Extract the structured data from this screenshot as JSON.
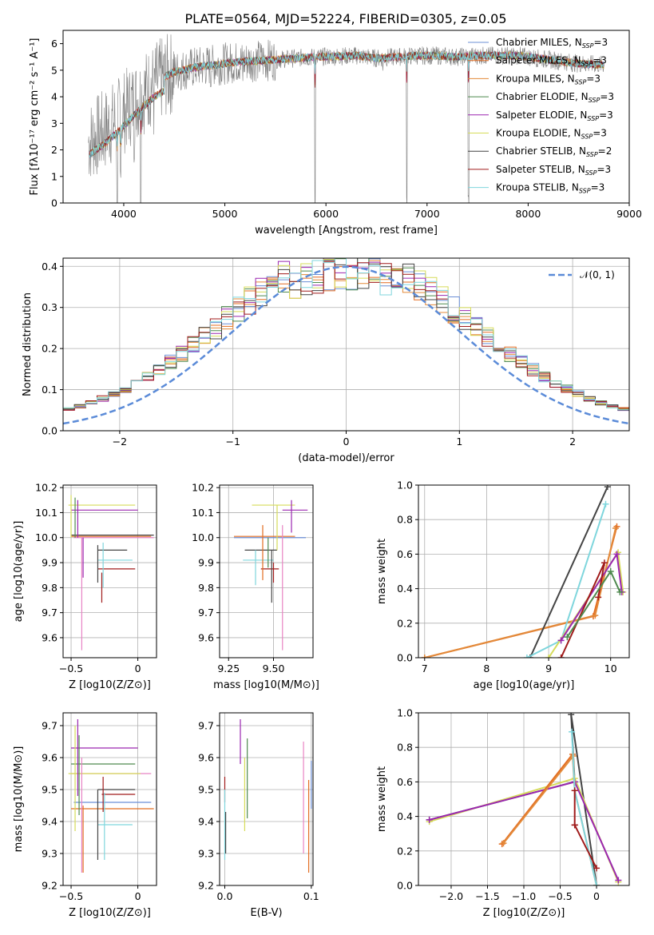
{
  "figure": {
    "title": "PLATE=0564, MJD=52224, FIBERID=0305, z=0.05"
  },
  "colors": {
    "Chabrier MILES": "#6b8fd6",
    "Salpeter MILES": "#e36d22",
    "Kroupa MILES": "#e38a3a",
    "Chabrier ELODIE": "#4f8a4f",
    "Salpeter ELODIE": "#9b27b0",
    "Kroupa ELODIE": "#d6dc5a",
    "Chabrier STELIB": "#444444",
    "Salpeter STELIB": "#a01b1b",
    "Kroupa STELIB": "#7fd6dd",
    "pink": "#e883c4",
    "gray_data": "#808080"
  },
  "chart_data": [
    {
      "id": "spectrum",
      "type": "line",
      "xlabel": "wavelength [Angstrom, rest frame]",
      "ylabel": "Flux [fλ10⁻¹⁷ erg cm⁻² s⁻¹ A⁻¹]",
      "xlim": [
        3400,
        9000
      ],
      "ylim": [
        0,
        6.5
      ],
      "xticks": [
        4000,
        5000,
        6000,
        7000,
        8000,
        9000
      ],
      "yticks": [
        0,
        1,
        2,
        3,
        4,
        5,
        6
      ],
      "legend_position": "upper-right",
      "legend": [
        "Chabrier MILES, N_SSP=3",
        "Salpeter MILES, N_SSP=3",
        "Kroupa MILES, N_SSP=3",
        "Chabrier ELODIE, N_SSP=3",
        "Salpeter ELODIE, N_SSP=3",
        "Kroupa ELODIE, N_SSP=3",
        "Chabrier STELIB, N_SSP=2",
        "Salpeter STELIB, N_SSP=3",
        "Kroupa STELIB, N_SSP=3"
      ],
      "continuum": {
        "x": [
          3650,
          3800,
          3950,
          4100,
          4300,
          4500,
          4700,
          4900,
          5100,
          5300,
          5500,
          5700,
          5900,
          6100,
          6300,
          6500,
          6700,
          6900,
          7100,
          7300,
          7500,
          7700,
          7900,
          8100,
          8300,
          8500,
          8750
        ],
        "y": [
          2.3,
          2.7,
          3.2,
          3.8,
          4.5,
          4.95,
          5.1,
          5.2,
          5.3,
          5.35,
          5.4,
          5.45,
          5.5,
          5.52,
          5.55,
          5.45,
          5.5,
          5.55,
          5.55,
          5.5,
          5.55,
          5.55,
          5.55,
          5.45,
          5.35,
          5.25,
          5.2
        ]
      },
      "absorption_dips": [
        {
          "x": 3934,
          "depth": 2.8
        },
        {
          "x": 3969,
          "depth": 2.5
        },
        {
          "x": 4102,
          "depth": 0.8
        },
        {
          "x": 4168,
          "depth": 5.0
        },
        {
          "x": 4300,
          "depth": 0.7
        },
        {
          "x": 4861,
          "depth": 0.4
        },
        {
          "x": 5175,
          "depth": 0.5
        },
        {
          "x": 5893,
          "depth": 5.4
        },
        {
          "x": 6563,
          "depth": 0.3
        },
        {
          "x": 6800,
          "depth": 5.4
        },
        {
          "x": 7410,
          "depth": 5.4
        }
      ]
    },
    {
      "id": "residuals",
      "type": "bar",
      "xlabel": "(data-model)/error",
      "ylabel": "Normed distribution",
      "xlim": [
        -2.5,
        2.5
      ],
      "ylim": [
        0,
        0.42
      ],
      "xticks": [
        -2,
        -1,
        0,
        1,
        2
      ],
      "yticks": [
        0.0,
        0.1,
        0.2,
        0.3,
        0.4
      ],
      "legend": [
        "𝒩(0, 1)"
      ],
      "legend_position": "upper-right",
      "bin_width": 0.1
    },
    {
      "id": "age-vs-Z",
      "type": "scatter",
      "xlabel": "Z [log10(Z/Z⊙)]",
      "ylabel": "age  [log10(age/yr)]",
      "xlim": [
        -0.56,
        0.14
      ],
      "ylim": [
        9.52,
        10.21
      ],
      "xticks": [
        -0.5,
        0.0
      ],
      "yticks": [
        9.6,
        9.7,
        9.8,
        9.9,
        10.0,
        10.1,
        10.2
      ],
      "segments": [
        {
          "c": "pink",
          "hline": [
            -0.48,
            0.12,
            10.0
          ]
        },
        {
          "c": "Salpeter MILES",
          "hline": [
            -0.5,
            0.1,
            10.005
          ]
        },
        {
          "c": "Chabrier STELIB",
          "hline": [
            -0.5,
            0.12,
            10.01
          ]
        },
        {
          "c": "Kroupa ELODIE",
          "hline": [
            -0.52,
            -0.02,
            10.13
          ]
        },
        {
          "c": "Salpeter ELODIE",
          "hline": [
            -0.5,
            0.0,
            10.11
          ]
        },
        {
          "c": "Chabrier STELIB",
          "hline": [
            -0.3,
            -0.08,
            9.95
          ]
        },
        {
          "c": "Kroupa STELIB",
          "hline": [
            -0.3,
            -0.04,
            9.91
          ]
        },
        {
          "c": "Salpeter STELIB",
          "hline": [
            -0.3,
            -0.02,
            9.875
          ]
        },
        {
          "c": "Kroupa ELODIE",
          "vline": [
            -0.5,
            10.0,
            10.17
          ]
        },
        {
          "c": "Chabrier ELODIE",
          "vline": [
            -0.47,
            10.0,
            10.16
          ]
        },
        {
          "c": "Salpeter ELODIE",
          "vline": [
            -0.45,
            10.0,
            10.15
          ]
        },
        {
          "c": "Salpeter ELODIE",
          "vline": [
            -0.41,
            9.84,
            10.0
          ]
        },
        {
          "c": "pink",
          "vline": [
            -0.42,
            9.55,
            10.0
          ]
        },
        {
          "c": "Chabrier STELIB",
          "vline": [
            -0.3,
            9.82,
            9.97
          ]
        },
        {
          "c": "Kroupa STELIB",
          "vline": [
            -0.26,
            9.8,
            9.98
          ]
        },
        {
          "c": "Salpeter STELIB",
          "vline": [
            -0.27,
            9.74,
            9.86
          ]
        }
      ]
    },
    {
      "id": "age-vs-mass",
      "type": "scatter",
      "xlabel": "mass [log10(M/M⊙)]",
      "ylabel": "",
      "xlim": [
        9.2,
        9.72
      ],
      "ylim": [
        9.52,
        10.21
      ],
      "xticks": [
        9.25,
        9.5
      ],
      "yticks": [
        9.6,
        9.7,
        9.8,
        9.9,
        10.0,
        10.1,
        10.2
      ],
      "segments": [
        {
          "c": "Chabrier MILES",
          "hline": [
            9.28,
            9.68,
            10.0
          ]
        },
        {
          "c": "Salpeter MILES",
          "hline": [
            9.28,
            9.62,
            10.005
          ]
        },
        {
          "c": "Kroupa ELODIE",
          "hline": [
            9.38,
            9.62,
            10.13
          ]
        },
        {
          "c": "Salpeter ELODIE",
          "hline": [
            9.55,
            9.69,
            10.11
          ]
        },
        {
          "c": "Chabrier STELIB",
          "hline": [
            9.34,
            9.52,
            9.95
          ]
        },
        {
          "c": "Kroupa STELIB",
          "hline": [
            9.33,
            9.5,
            9.91
          ]
        },
        {
          "c": "Salpeter STELIB",
          "hline": [
            9.43,
            9.53,
            9.875
          ]
        },
        {
          "c": "Salpeter MILES",
          "vline": [
            9.44,
            9.83,
            10.05
          ]
        },
        {
          "c": "Kroupa ELODIE",
          "vline": [
            9.52,
            9.95,
            10.13
          ]
        },
        {
          "c": "Salpeter ELODIE",
          "vline": [
            9.6,
            10.02,
            10.15
          ]
        },
        {
          "c": "pink",
          "vline": [
            9.55,
            9.55,
            10.05
          ]
        },
        {
          "c": "Chabrier STELIB",
          "vline": [
            9.49,
            9.74,
            9.95
          ]
        },
        {
          "c": "Kroupa STELIB",
          "vline": [
            9.4,
            9.81,
            9.95
          ]
        },
        {
          "c": "Salpeter STELIB",
          "vline": [
            9.5,
            9.82,
            9.9
          ]
        },
        {
          "c": "Chabrier ELODIE",
          "vline": [
            9.47,
            9.88,
            10.0
          ]
        }
      ]
    },
    {
      "id": "mass-weight-vs-age",
      "type": "line",
      "xlabel": "age  [log10(age/yr)]",
      "ylabel": "mass weight",
      "xlim": [
        6.9,
        10.3
      ],
      "ylim": [
        0,
        1.0
      ],
      "xticks": [
        7,
        8,
        9,
        10
      ],
      "yticks": [
        0.0,
        0.2,
        0.4,
        0.6,
        0.8,
        1.0
      ],
      "series": [
        {
          "c": "Salpeter MILES",
          "x": [
            7.0,
            9.72,
            10.1
          ],
          "y": [
            0.0,
            0.24,
            0.76
          ]
        },
        {
          "c": "Kroupa MILES",
          "x": [
            7.0,
            9.75,
            10.08
          ],
          "y": [
            0.0,
            0.245,
            0.75
          ]
        },
        {
          "c": "Chabrier STELIB",
          "x": [
            8.7,
            9.95
          ],
          "y": [
            0.0,
            0.99
          ]
        },
        {
          "c": "Kroupa STELIB",
          "x": [
            8.65,
            9.2,
            9.92
          ],
          "y": [
            0.0,
            0.1,
            0.89
          ]
        },
        {
          "c": "Kroupa ELODIE",
          "x": [
            9.0,
            10.12,
            10.2
          ],
          "y": [
            0.0,
            0.61,
            0.38
          ]
        },
        {
          "c": "Salpeter ELODIE",
          "x": [
            9.2,
            10.1,
            10.18
          ],
          "y": [
            0.1,
            0.6,
            0.38
          ]
        },
        {
          "c": "Salpeter STELIB",
          "x": [
            9.2,
            9.9,
            9.8
          ],
          "y": [
            0.0,
            0.55,
            0.35
          ]
        },
        {
          "c": "Chabrier ELODIE",
          "x": [
            9.3,
            10.0,
            10.15
          ],
          "y": [
            0.12,
            0.5,
            0.38
          ]
        }
      ]
    },
    {
      "id": "mass-vs-Z",
      "type": "scatter",
      "xlabel": "Z [log10(Z/Z⊙)]",
      "ylabel": "mass [log10(M/M⊙)]",
      "xlim": [
        -0.56,
        0.14
      ],
      "ylim": [
        9.2,
        9.74
      ],
      "xticks": [
        -0.5,
        0.0
      ],
      "yticks": [
        9.2,
        9.3,
        9.4,
        9.5,
        9.6,
        9.7
      ],
      "segments": [
        {
          "c": "Salpeter ELODIE",
          "hline": [
            -0.5,
            0.0,
            9.63
          ]
        },
        {
          "c": "Chabrier ELODIE",
          "hline": [
            -0.5,
            -0.02,
            9.58
          ]
        },
        {
          "c": "pink",
          "hline": [
            -0.5,
            0.1,
            9.55
          ]
        },
        {
          "c": "Kroupa ELODIE",
          "hline": [
            -0.52,
            0.02,
            9.55
          ]
        },
        {
          "c": "Chabrier STELIB",
          "hline": [
            -0.3,
            -0.02,
            9.5
          ]
        },
        {
          "c": "Salpeter STELIB",
          "hline": [
            -0.27,
            -0.02,
            9.485
          ]
        },
        {
          "c": "Chabrier MILES",
          "hline": [
            -0.48,
            0.1,
            9.46
          ]
        },
        {
          "c": "Salpeter MILES",
          "hline": [
            -0.5,
            0.12,
            9.44
          ]
        },
        {
          "c": "Kroupa STELIB",
          "hline": [
            -0.3,
            -0.04,
            9.39
          ]
        },
        {
          "c": "Kroupa ELODIE",
          "vline": [
            -0.47,
            9.37,
            9.7
          ]
        },
        {
          "c": "Salpeter ELODIE",
          "vline": [
            -0.45,
            9.48,
            9.72
          ]
        },
        {
          "c": "Chabrier ELODIE",
          "vline": [
            -0.44,
            9.42,
            9.67
          ]
        },
        {
          "c": "pink",
          "vline": [
            -0.42,
            9.24,
            9.6
          ]
        },
        {
          "c": "Salpeter MILES",
          "vline": [
            -0.41,
            9.24,
            9.45
          ]
        },
        {
          "c": "Chabrier STELIB",
          "vline": [
            -0.3,
            9.28,
            9.5
          ]
        },
        {
          "c": "Kroupa STELIB",
          "vline": [
            -0.25,
            9.28,
            9.49
          ]
        },
        {
          "c": "Salpeter STELIB",
          "vline": [
            -0.26,
            9.43,
            9.54
          ]
        }
      ]
    },
    {
      "id": "mass-vs-ebv",
      "type": "scatter",
      "xlabel": "E(B-V)",
      "ylabel": "",
      "xlim": [
        -0.006,
        0.102
      ],
      "ylim": [
        9.2,
        9.74
      ],
      "xticks": [
        0.0,
        0.1
      ],
      "yticks": [
        9.2,
        9.3,
        9.4,
        9.5,
        9.6,
        9.7
      ],
      "segments": [
        {
          "c": "Salpeter STELIB",
          "vline": [
            0.0,
            9.46,
            9.54
          ]
        },
        {
          "c": "Kroupa STELIB",
          "vline": [
            0.0,
            9.28,
            9.5
          ]
        },
        {
          "c": "Chabrier STELIB",
          "vline": [
            0.001,
            9.3,
            9.43
          ]
        },
        {
          "c": "Salpeter ELODIE",
          "vline": [
            0.018,
            9.58,
            9.72
          ]
        },
        {
          "c": "Kroupa ELODIE",
          "vline": [
            0.023,
            9.37,
            9.6
          ]
        },
        {
          "c": "Chabrier ELODIE",
          "vline": [
            0.026,
            9.41,
            9.66
          ]
        },
        {
          "c": "pink",
          "vline": [
            0.091,
            9.3,
            9.65
          ]
        },
        {
          "c": "Salpeter MILES",
          "vline": [
            0.097,
            9.24,
            9.53
          ]
        },
        {
          "c": "Chabrier MILES",
          "vline": [
            0.1,
            9.44,
            9.59
          ]
        }
      ]
    },
    {
      "id": "mass-weight-vs-Z",
      "type": "line",
      "xlabel": "Z [log10(Z/Z⊙)]",
      "ylabel": "mass weight",
      "xlim": [
        -2.45,
        0.45
      ],
      "ylim": [
        0,
        1.0
      ],
      "xticks": [
        -2.0,
        -1.5,
        -1.0,
        -0.5,
        0.0
      ],
      "yticks": [
        0.0,
        0.2,
        0.4,
        0.6,
        0.8,
        1.0
      ],
      "series": [
        {
          "c": "Chabrier STELIB",
          "x": [
            -2.3,
            -0.3,
            -0.35,
            0.0
          ],
          "y": [
            0.38,
            0.6,
            0.99,
            0.0
          ]
        },
        {
          "c": "Kroupa ELODIE",
          "x": [
            -2.3,
            -0.3,
            0.3
          ],
          "y": [
            0.37,
            0.62,
            0.02
          ]
        },
        {
          "c": "Salpeter ELODIE",
          "x": [
            -2.3,
            -0.3,
            0.3
          ],
          "y": [
            0.38,
            0.6,
            0.03
          ]
        },
        {
          "c": "Salpeter MILES",
          "x": [
            -1.3,
            -0.33,
            -0.3,
            0.0
          ],
          "y": [
            0.24,
            0.76,
            0.55,
            0.0
          ]
        },
        {
          "c": "Kroupa MILES",
          "x": [
            -1.28,
            -0.32,
            -0.3
          ],
          "y": [
            0.245,
            0.75,
            0.55
          ]
        },
        {
          "c": "Kroupa STELIB",
          "x": [
            -0.34,
            -0.3,
            0.0
          ],
          "y": [
            0.89,
            0.55,
            0.0
          ]
        },
        {
          "c": "Salpeter STELIB",
          "x": [
            -0.3,
            -0.3,
            -0.3,
            0.0
          ],
          "y": [
            0.55,
            0.35,
            0.35,
            0.1
          ]
        }
      ]
    }
  ]
}
